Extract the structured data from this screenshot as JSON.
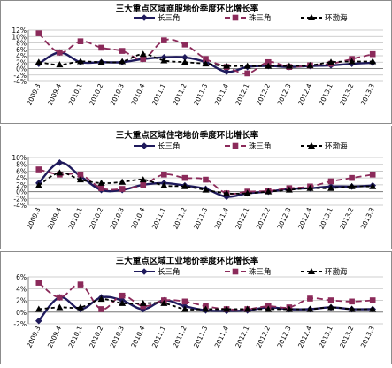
{
  "chart_data": [
    {
      "type": "line",
      "title": "三大重点区域商服地价季度环比增长率",
      "categories": [
        "2009.3",
        "2009.4",
        "2010.1",
        "2010.2",
        "2010.3",
        "2010.4",
        "2011.1",
        "2011.2",
        "2011.3",
        "2011.4",
        "2012.1",
        "2012.2",
        "2012.3",
        "2012.4",
        "2013.1",
        "2013.2",
        "2013.3"
      ],
      "ylim": [
        -4,
        12
      ],
      "yticks": [
        "-4%",
        "-2%",
        "0%",
        "2%",
        "4%",
        "6%",
        "8%",
        "10%",
        "12%"
      ],
      "legend": "top",
      "grid": true,
      "series": [
        {
          "name": "长三角",
          "color": "#1f1a5c",
          "marker": "diamond",
          "values": [
            1.5,
            5.0,
            2.0,
            2.0,
            2.0,
            3.0,
            3.5,
            3.5,
            2.0,
            -1.0,
            0.5,
            0.8,
            0.5,
            0.8,
            1.0,
            1.5,
            1.8
          ]
        },
        {
          "name": "珠三角",
          "color": "#8b2a5a",
          "marker": "square",
          "values": [
            11.0,
            5.0,
            8.5,
            6.5,
            5.5,
            3.0,
            8.8,
            7.5,
            3.0,
            0.5,
            -1.5,
            2.0,
            0.5,
            1.0,
            1.5,
            3.0,
            4.5
          ]
        },
        {
          "name": "环渤海",
          "color": "#000000",
          "marker": "triangle",
          "values": [
            2.0,
            1.2,
            2.2,
            2.0,
            2.2,
            4.5,
            2.5,
            2.0,
            1.5,
            0.8,
            0.8,
            0.8,
            0.8,
            1.0,
            2.0,
            2.2,
            2.2
          ]
        }
      ]
    },
    {
      "type": "line",
      "title": "三大重点区域住宅地价季度环比增长率",
      "categories": [
        "2009.3",
        "2009.4",
        "2010.1",
        "2010.2",
        "2010.3",
        "2010.4",
        "2011.1",
        "2011.2",
        "2011.3",
        "2011.4",
        "2012.1",
        "2012.2",
        "2012.3",
        "2012.4",
        "2013.1",
        "2013.2",
        "2013.3"
      ],
      "ylim": [
        -4,
        10
      ],
      "yticks": [
        "-4%",
        "-2%",
        "0%",
        "2%",
        "4%",
        "6%",
        "8%",
        "10%"
      ],
      "legend": "top",
      "grid": true,
      "series": [
        {
          "name": "长三角",
          "color": "#1f1a5c",
          "marker": "diamond",
          "values": [
            2.5,
            8.5,
            4.5,
            0.5,
            0.5,
            2.0,
            2.5,
            1.8,
            0.8,
            -1.5,
            -0.5,
            0.0,
            0.8,
            1.0,
            1.5,
            1.5,
            1.8
          ]
        },
        {
          "name": "珠三角",
          "color": "#8b2a5a",
          "marker": "square",
          "values": [
            6.5,
            5.0,
            5.0,
            1.0,
            0.8,
            2.0,
            5.0,
            4.0,
            3.5,
            -0.5,
            0.0,
            0.2,
            1.0,
            1.5,
            3.0,
            4.0,
            5.0
          ]
        },
        {
          "name": "环渤海",
          "color": "#000000",
          "marker": "triangle",
          "values": [
            1.8,
            5.5,
            3.5,
            2.5,
            2.8,
            3.5,
            1.8,
            1.5,
            0.5,
            -0.5,
            -0.5,
            0.0,
            0.5,
            1.0,
            1.0,
            1.5,
            1.5
          ]
        }
      ]
    },
    {
      "type": "line",
      "title": "三大重点区域工业地价季度环比增长率",
      "categories": [
        "2009.3",
        "2009.4",
        "2010.1",
        "2010.2",
        "2010.3",
        "2010.4",
        "2011.1",
        "2011.2",
        "2011.3",
        "2011.4",
        "2012.1",
        "2012.2",
        "2012.3",
        "2012.4",
        "2013.1",
        "2013.2",
        "2013.3"
      ],
      "ylim": [
        -2,
        6
      ],
      "yticks": [
        "-2%",
        "0%",
        "2%",
        "4%",
        "6%"
      ],
      "legend": "top",
      "grid": true,
      "series": [
        {
          "name": "长三角",
          "color": "#1f1a5c",
          "marker": "diamond",
          "values": [
            -1.5,
            2.5,
            0.5,
            2.5,
            2.0,
            0.5,
            2.0,
            1.0,
            0.3,
            0.2,
            0.3,
            0.8,
            0.5,
            0.5,
            0.8,
            0.5,
            0.5
          ]
        },
        {
          "name": "珠三角",
          "color": "#8b2a5a",
          "marker": "square",
          "values": [
            5.0,
            2.5,
            4.7,
            0.5,
            2.8,
            1.0,
            2.0,
            1.8,
            1.0,
            0.5,
            0.5,
            1.0,
            0.8,
            2.3,
            2.0,
            1.8,
            2.0
          ]
        },
        {
          "name": "环渤海",
          "color": "#000000",
          "marker": "triangle",
          "values": [
            0.5,
            0.8,
            0.8,
            2.2,
            1.5,
            1.5,
            1.5,
            0.5,
            0.5,
            0.5,
            0.5,
            0.5,
            0.5,
            0.5,
            0.8,
            0.5,
            0.5
          ]
        }
      ]
    }
  ]
}
